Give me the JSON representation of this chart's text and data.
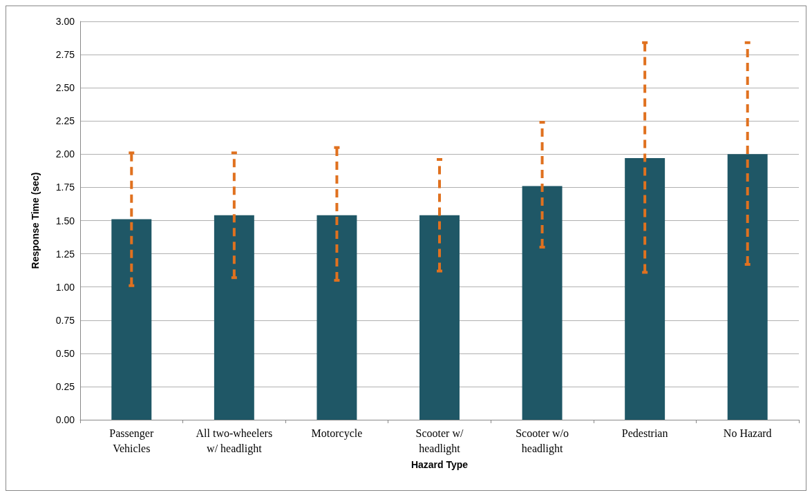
{
  "chart_data": {
    "type": "bar",
    "xlabel": "Hazard Type",
    "ylabel": "Response Time (sec)",
    "categories": [
      "Passenger\nVehicles",
      "All two-wheelers\nw/ headlight",
      "Motorcycle",
      "Scooter w/\nheadlight",
      "Scooter w/o\nheadlight",
      "Pedestrian",
      "No Hazard"
    ],
    "values": [
      1.51,
      1.54,
      1.54,
      1.54,
      1.76,
      1.97,
      2.0
    ],
    "errors": [
      [
        1.01,
        2.01
      ],
      [
        1.07,
        2.01
      ],
      [
        1.05,
        2.05
      ],
      [
        1.12,
        1.96
      ],
      [
        1.3,
        2.24
      ],
      [
        1.11,
        2.84
      ],
      [
        1.17,
        2.84
      ]
    ],
    "color": "#1f5766",
    "ylim": [
      0,
      3
    ],
    "yticks": [
      {
        "value": 0,
        "label": "0.00"
      },
      {
        "value": 0.25,
        "label": "0.25"
      },
      {
        "value": 0.5,
        "label": "0.50"
      },
      {
        "value": 0.75,
        "label": "0.75"
      },
      {
        "value": 1,
        "label": "1.00"
      },
      {
        "value": 1.25,
        "label": "1.25"
      },
      {
        "value": 1.5,
        "label": "1.50"
      },
      {
        "value": 1.75,
        "label": "1.75"
      },
      {
        "value": 2,
        "label": "2.00"
      },
      {
        "value": 2.25,
        "label": "2.25"
      },
      {
        "value": 2.5,
        "label": "2.50"
      },
      {
        "value": 2.75,
        "label": "2.75"
      },
      {
        "value": 3,
        "label": "3.00"
      }
    ],
    "grid": "y"
  }
}
